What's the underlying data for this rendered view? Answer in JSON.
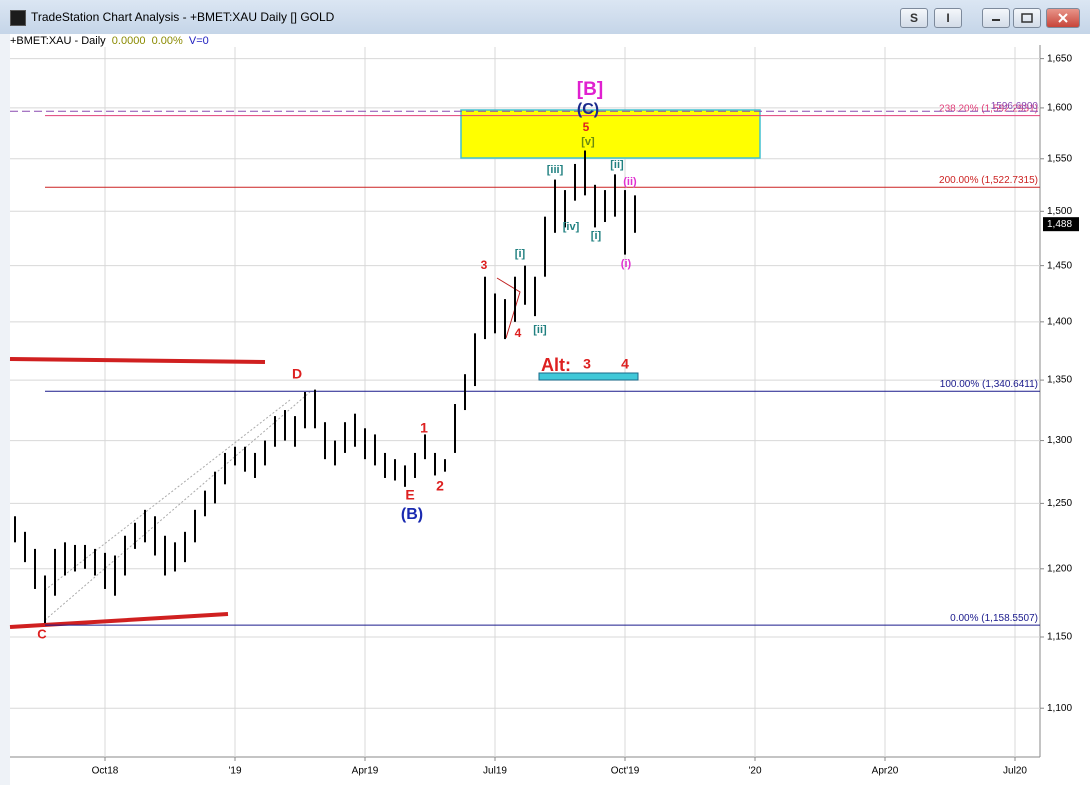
{
  "window": {
    "title": "TradeStation Chart Analysis - +BMET:XAU Daily [] GOLD",
    "buttons": [
      "S",
      "I"
    ]
  },
  "chart_data": {
    "type": "ohlc",
    "symbol": "+BMET:XAU - Daily",
    "change": "0.0000",
    "change_pct": "0.00%",
    "volume": "V=0",
    "log_scale": true,
    "grid": true,
    "color": "#000000",
    "categories": [
      null,
      null,
      null,
      null,
      null,
      null,
      null,
      null,
      null,
      "Oct18",
      null,
      null,
      null,
      null,
      null,
      null,
      null,
      null,
      null,
      null,
      null,
      null,
      "'19",
      null,
      null,
      null,
      null,
      null,
      null,
      null,
      null,
      null,
      null,
      null,
      null,
      "Apr19",
      null,
      null,
      null,
      null,
      null,
      null,
      null,
      null,
      null,
      null,
      null,
      null,
      "Jul19",
      null,
      null,
      null,
      null,
      null,
      null,
      null,
      null,
      null,
      null,
      null,
      null,
      "Oct'19",
      null,
      null,
      null,
      null,
      null,
      null,
      null,
      null,
      null,
      null,
      null,
      null,
      "'20",
      null,
      null,
      null,
      null,
      null,
      null,
      null,
      null,
      null,
      null,
      null,
      null,
      "Apr20",
      null,
      null,
      null,
      null,
      null,
      null,
      null,
      null,
      null,
      null,
      null,
      null,
      "Jul20",
      null,
      null
    ],
    "high": [
      1240,
      1228,
      1215,
      1195,
      1215,
      1220,
      1218,
      1218,
      1215,
      1212,
      1210,
      1225,
      1235,
      1245,
      1240,
      1225,
      1220,
      1228,
      1245,
      1260,
      1275,
      1290,
      1295,
      1295,
      1290,
      1300,
      1320,
      1325,
      1320,
      1340,
      1342,
      1315,
      1300,
      1315,
      1322,
      1310,
      1305,
      1290,
      1285,
      1280,
      1290,
      1305,
      1290,
      1285,
      1330,
      1355,
      1390,
      1440,
      1425,
      1420,
      1440,
      1450,
      1440,
      1495,
      1530,
      1520,
      1545,
      1558,
      1525,
      1520,
      1535,
      1520,
      1515,
      null,
      null,
      null,
      null,
      null,
      null,
      null,
      null,
      null,
      null,
      null,
      null,
      null,
      null,
      null,
      null,
      null,
      null,
      null,
      null,
      null,
      null,
      null,
      null,
      null,
      null,
      null,
      null,
      null,
      null,
      null,
      null,
      null,
      null,
      null,
      null,
      null,
      null,
      null,
      null
    ],
    "low": [
      1220,
      1205,
      1185,
      1160,
      1180,
      1195,
      1198,
      1200,
      1195,
      1185,
      1180,
      1195,
      1215,
      1220,
      1210,
      1195,
      1198,
      1205,
      1220,
      1240,
      1250,
      1265,
      1280,
      1275,
      1270,
      1280,
      1295,
      1300,
      1295,
      1310,
      1310,
      1285,
      1280,
      1290,
      1295,
      1285,
      1280,
      1270,
      1268,
      1263,
      1270,
      1285,
      1272,
      1275,
      1290,
      1325,
      1345,
      1385,
      1390,
      1385,
      1400,
      1415,
      1405,
      1440,
      1480,
      1485,
      1510,
      1515,
      1485,
      1490,
      1495,
      1460,
      1480,
      null,
      null,
      null,
      null,
      null,
      null,
      null,
      null,
      null,
      null,
      null,
      null,
      null,
      null,
      null,
      null,
      null,
      null,
      null,
      null,
      null,
      null,
      null,
      null,
      null,
      null,
      null,
      null,
      null,
      null,
      null,
      null,
      null,
      null,
      null,
      null,
      null,
      null,
      null,
      null
    ],
    "last_price": {
      "value": 1488,
      "label": "1,488"
    },
    "ylim": [
      1067,
      1662
    ],
    "yticks": [
      {
        "value": 1100,
        "label": "1,100"
      },
      {
        "value": 1150,
        "label": "1,150"
      },
      {
        "value": 1200,
        "label": "1,200"
      },
      {
        "value": 1250,
        "label": "1,250"
      },
      {
        "value": 1300,
        "label": "1,300"
      },
      {
        "value": 1350,
        "label": "1,350"
      },
      {
        "value": 1400,
        "label": "1,400"
      },
      {
        "value": 1450,
        "label": "1,450"
      },
      {
        "value": 1500,
        "label": "1,500"
      },
      {
        "value": 1550,
        "label": "1,550"
      },
      {
        "value": 1600,
        "label": "1,600"
      },
      {
        "value": 1650,
        "label": "1,650"
      }
    ],
    "fib_levels": [
      {
        "value": 1158.5507,
        "label": "0.00% (1,158.5507)",
        "color": "#1a1a8c"
      },
      {
        "value": 1340.6411,
        "label": "100.00% (1,340.6411)",
        "color": "#1a1a8c"
      },
      {
        "value": 1522.7315,
        "label": "200.00% (1,522.7315)",
        "color": "#cc2222"
      },
      {
        "value": 1592.2931,
        "label": "238.20% (1,592.2931)",
        "color": "#e0407a"
      },
      {
        "value": 1596.68,
        "label": "1596.6800",
        "color": "#8a4ab0"
      }
    ],
    "annotations": [
      {
        "text": "[B]",
        "color": "#e020d0"
      },
      {
        "text": "(C)",
        "color": "#1a2a8c"
      },
      {
        "text": "5",
        "color": "#dd2020"
      },
      {
        "text": "[v]",
        "color": "#6a8a10"
      },
      {
        "text": "[iii]",
        "color": "#208080"
      },
      {
        "text": "[iv]",
        "color": "#208080"
      },
      {
        "text": "[i]",
        "color": "#208080"
      },
      {
        "text": "[ii]",
        "color": "#208080"
      },
      {
        "text": "(ii)",
        "color": "#e030d0"
      },
      {
        "text": "(i)",
        "color": "#e030d0"
      },
      {
        "text": "[i]",
        "color": "#208080"
      },
      {
        "text": "[ii]",
        "color": "#208080"
      },
      {
        "text": "3",
        "color": "#dd2020"
      },
      {
        "text": "4",
        "color": "#dd2020"
      },
      {
        "text": "Alt:",
        "color": "#dd2020"
      },
      {
        "text": "3",
        "color": "#dd2020"
      },
      {
        "text": "4",
        "color": "#dd2020"
      },
      {
        "text": "D",
        "color": "#dd2020"
      },
      {
        "text": "1",
        "color": "#dd2020"
      },
      {
        "text": "2",
        "color": "#dd2020"
      },
      {
        "text": "E",
        "color": "#dd2020"
      },
      {
        "text": "(B)",
        "color": "#1a2ab0"
      },
      {
        "text": "C",
        "color": "#dd2020"
      }
    ]
  }
}
